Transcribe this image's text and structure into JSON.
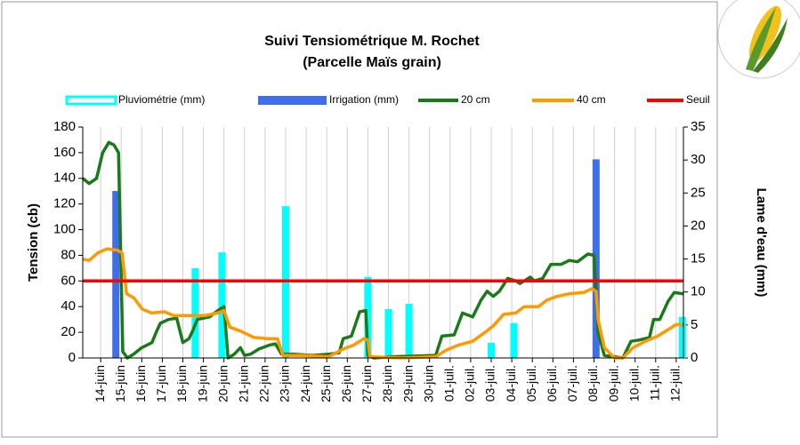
{
  "chart_data": {
    "type": "combo",
    "title": "Suivi Tensiométrique M. Rochet",
    "subtitle": "(Parcelle Maïs grain)",
    "y_label": "Tension (cb)",
    "y2_label": "Lame d'eau (mm)",
    "xlim": [
      -0.87,
      28.35
    ],
    "xticks": [
      {
        "value": 0,
        "label": "14-juin"
      },
      {
        "value": 1,
        "label": "15-juin"
      },
      {
        "value": 2,
        "label": "16-juin"
      },
      {
        "value": 3,
        "label": "17-juin"
      },
      {
        "value": 4,
        "label": "18-juin"
      },
      {
        "value": 5,
        "label": "19-juin"
      },
      {
        "value": 6,
        "label": "20-juin"
      },
      {
        "value": 7,
        "label": "21-juin"
      },
      {
        "value": 8,
        "label": "22-juin"
      },
      {
        "value": 9,
        "label": "23-juin"
      },
      {
        "value": 10,
        "label": "24-juin"
      },
      {
        "value": 11,
        "label": "25-juin"
      },
      {
        "value": 12,
        "label": "26-juin"
      },
      {
        "value": 13,
        "label": "27-juin"
      },
      {
        "value": 14,
        "label": "28-juin"
      },
      {
        "value": 15,
        "label": "29-juin"
      },
      {
        "value": 16,
        "label": "30-juin"
      },
      {
        "value": 17,
        "label": "01-juil."
      },
      {
        "value": 18,
        "label": "02-juil."
      },
      {
        "value": 19,
        "label": "03-juil."
      },
      {
        "value": 20,
        "label": "04-juil."
      },
      {
        "value": 21,
        "label": "05-juil."
      },
      {
        "value": 22,
        "label": "06-juil."
      },
      {
        "value": 23,
        "label": "07-juil."
      },
      {
        "value": 24,
        "label": "08-juil."
      },
      {
        "value": 25,
        "label": "09-juil."
      },
      {
        "value": 26,
        "label": "10-juil."
      },
      {
        "value": 27,
        "label": "11-juil."
      },
      {
        "value": 28,
        "label": "12-juil."
      }
    ],
    "ylim": [
      0,
      180
    ],
    "yticks": [
      0,
      20,
      40,
      60,
      80,
      100,
      120,
      140,
      160,
      180
    ],
    "y2lim": [
      0,
      35
    ],
    "y2ticks": [
      0,
      5,
      10,
      15,
      20,
      25,
      30,
      35
    ],
    "grid": "x",
    "series": [
      {
        "name": "Pluviométrie (mm)",
        "type": "bar",
        "axis": "y2",
        "color": "#00ffff",
        "x": [
          4.6,
          5.9,
          9,
          13,
          14,
          15,
          19,
          20.1,
          28.3
        ],
        "values": [
          13.6,
          16,
          23,
          12.3,
          7.4,
          8.2,
          2.3,
          5.3,
          6.2
        ]
      },
      {
        "name": "Irrigation (mm)",
        "type": "bar",
        "axis": "y2",
        "color": "#3f6fe8",
        "x": [
          0.74,
          24.1
        ],
        "values": [
          25.3,
          30.1
        ]
      },
      {
        "name": "20 cm",
        "type": "line",
        "color": "#1a7a1a",
        "x": [
          -0.87,
          -0.56,
          -0.2,
          0.1,
          0.4,
          0.65,
          0.87,
          1.08,
          1.3,
          1.6,
          2.0,
          2.5,
          2.7,
          2.9,
          3.3,
          3.7,
          4.0,
          4.3,
          4.5,
          4.7,
          5.3,
          5.7,
          6.0,
          6.2,
          6.5,
          6.8,
          7.0,
          7.3,
          7.7,
          8.2,
          8.5,
          8.8,
          9.4,
          10.3,
          11.1,
          11.6,
          11.8,
          12.2,
          12.6,
          12.9,
          13.0,
          13.3,
          14.2,
          16.3,
          16.6,
          17.2,
          17.6,
          18.1,
          18.5,
          18.8,
          19.1,
          19.4,
          19.8,
          20.2,
          20.4,
          20.9,
          21.1,
          21.5,
          21.9,
          22.4,
          22.8,
          23.2,
          23.7,
          24.0,
          24.2,
          24.5,
          25.0,
          25.4,
          25.8,
          26.2,
          26.7,
          26.9,
          27.2,
          27.6,
          27.9,
          28.35
        ],
        "values": [
          140,
          136,
          140,
          160,
          168,
          166,
          160,
          5,
          0,
          3,
          8,
          12,
          20,
          27,
          30,
          31,
          12,
          15,
          22,
          30,
          32,
          37,
          40,
          0,
          3,
          8,
          2,
          3,
          7,
          10,
          11,
          3,
          3,
          2,
          3,
          4,
          15,
          17,
          36,
          37,
          2,
          0,
          1,
          2,
          17,
          18,
          35,
          32,
          45,
          52,
          48,
          52,
          62,
          60,
          58,
          63,
          60,
          62,
          73,
          73,
          76,
          75,
          81,
          80,
          20,
          2,
          1,
          0,
          13,
          14,
          16,
          30,
          30,
          44,
          51,
          50
        ]
      },
      {
        "name": "40 cm",
        "type": "line",
        "color": "#ff9900",
        "x": [
          -0.87,
          -0.56,
          -0.13,
          0.3,
          0.82,
          1.04,
          1.26,
          1.6,
          2.03,
          2.47,
          3.1,
          3.55,
          4.2,
          5.06,
          5.7,
          6.0,
          6.28,
          6.8,
          7.45,
          8.1,
          8.6,
          8.87,
          9.8,
          11.1,
          11.8,
          12.3,
          12.8,
          13.0,
          13.1,
          14.6,
          16.3,
          16.8,
          17.4,
          18.1,
          18.7,
          19.1,
          19.6,
          20.2,
          20.6,
          21.3,
          21.7,
          22.2,
          22.8,
          23.5,
          23.9,
          24.1,
          24.2,
          24.5,
          25.0,
          25.4,
          25.9,
          26.5,
          27.1,
          27.7,
          28.0,
          28.35
        ],
        "values": [
          77,
          76,
          82,
          85,
          84,
          82,
          50,
          47,
          38,
          35,
          36,
          33,
          33,
          33,
          35,
          37,
          24,
          21,
          16,
          15,
          15,
          2,
          2,
          1,
          7,
          10,
          15,
          14,
          1,
          0,
          1,
          6,
          10,
          13,
          20,
          25,
          34,
          35,
          40,
          40,
          45,
          48,
          50,
          51,
          54,
          52,
          30,
          8,
          0,
          0,
          8,
          13,
          17,
          23,
          26,
          26
        ]
      },
      {
        "name": "Seuil",
        "type": "line",
        "color": "#ff0000",
        "x": [
          -0.87,
          28.35
        ],
        "values": [
          60,
          60
        ]
      }
    ]
  }
}
